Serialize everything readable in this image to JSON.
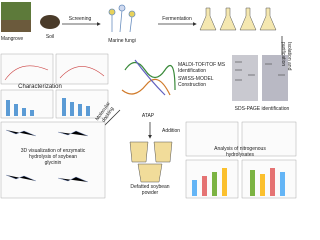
{
  "labels": {
    "mangrove": "Mangrove",
    "soil": "Soil",
    "screening": "Screening",
    "fungi": "Marine fungi",
    "fermentation": "Fermentation",
    "isolation": [
      "Isolation and",
      "purification"
    ],
    "characterization": "Characterization",
    "maldi": [
      "MALDI-TOF/TOF MS",
      "Identification"
    ],
    "swiss": [
      "SWISS-MODEL",
      "Construction"
    ],
    "sds": "SDS-PAGE identification",
    "atap": "ATAP",
    "docking": [
      "Molecular",
      "docking"
    ],
    "addition": "Addition",
    "soybean": [
      "Defatted soybean",
      "powder"
    ],
    "visualization": [
      "3D visualization of enzymatic",
      "hydrolysis of soybean",
      "glycinin"
    ],
    "analysis": [
      "Analysis of nitrogenous",
      "hydrolysates"
    ]
  }
}
